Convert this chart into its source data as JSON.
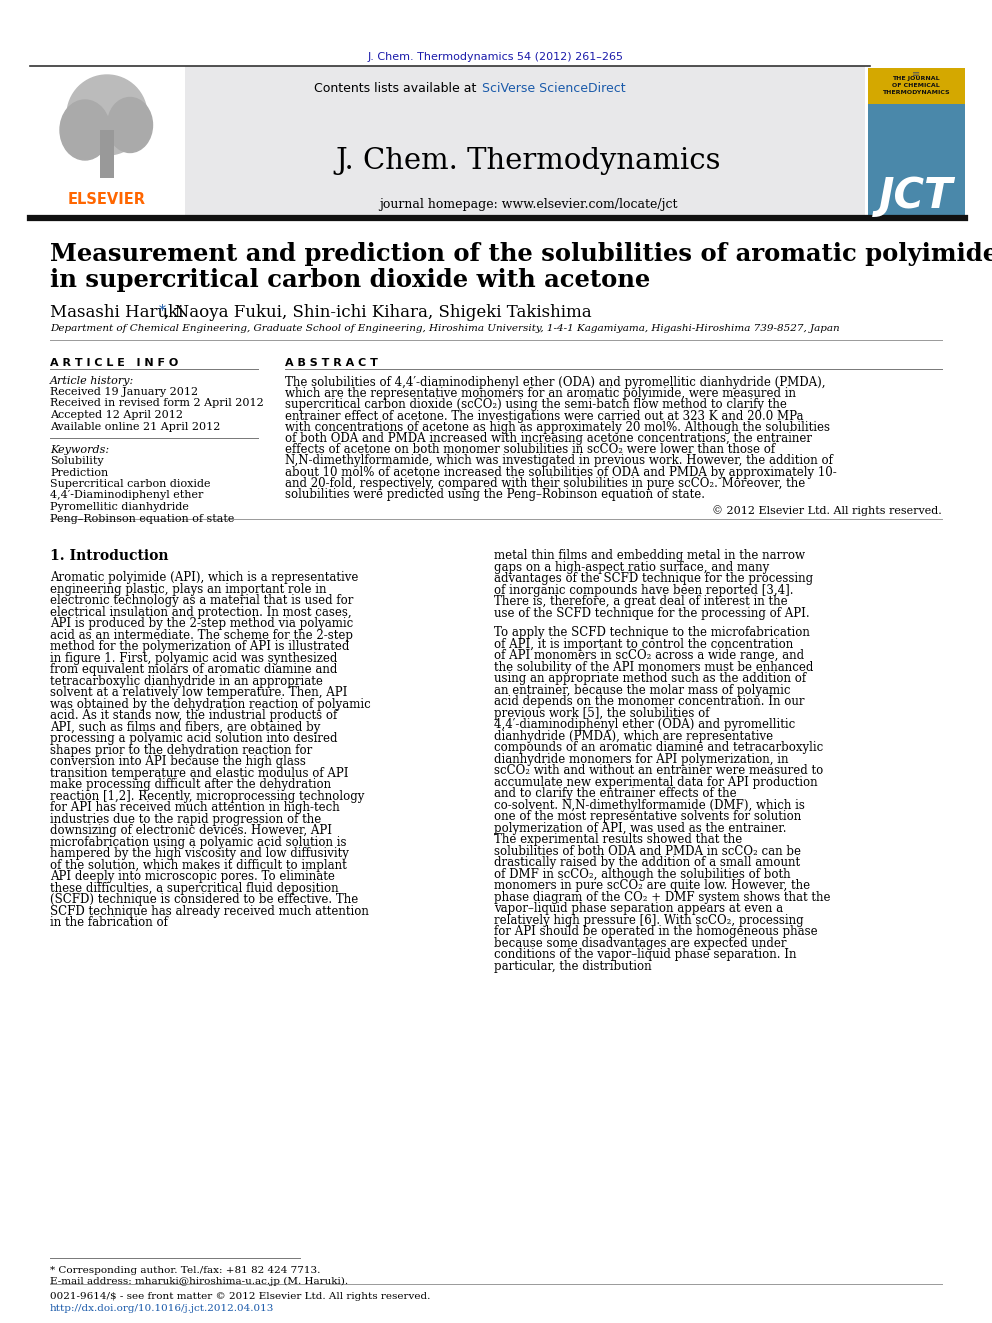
{
  "journal_ref": "J. Chem. Thermodynamics 54 (2012) 261–265",
  "journal_ref_color": "#1A1AAA",
  "header_bg": "#E8E8EA",
  "journal_name": "J. Chem. Thermodynamics",
  "contents_text": "Contents lists available at ",
  "sciverse_text": "SciVerse ScienceDirect",
  "sciverse_color": "#1A5AAA",
  "homepage_text": "journal homepage: www.elsevier.com/locate/jct",
  "elsevier_color": "#FF6600",
  "paper_title_line1": "Measurement and prediction of the solubilities of aromatic polyimide monomers",
  "paper_title_line2": "in supercritical carbon dioxide with acetone",
  "authors_plain": ", Naoya Fukui, Shin-ichi Kihara, Shigeki Takishima",
  "affiliation": "Department of Chemical Engineering, Graduate School of Engineering, Hiroshima University, 1-4-1 Kagamiyama, Higashi-Hiroshima 739-8527, Japan",
  "article_info_label": "A R T I C L E   I N F O",
  "abstract_label": "A B S T R A C T",
  "article_history_label": "Article history:",
  "article_history_lines": [
    "Received 19 January 2012",
    "Received in revised form 2 April 2012",
    "Accepted 12 April 2012",
    "Available online 21 April 2012"
  ],
  "keywords_label": "Keywords:",
  "keywords_lines": [
    "Solubility",
    "Prediction",
    "Supercritical carbon dioxide",
    "4,4′-Diaminodiphenyl ether",
    "Pyromellitic dianhydride",
    "Peng–Robinson equation of state"
  ],
  "abstract_text": "The solubilities of 4,4′-diaminodiphenyl ether (ODA) and pyromellitic dianhydride (PMDA), which are the representative monomers for an aromatic polyimide, were measured in supercritical carbon dioxide (scCO₂) using the semi-batch flow method to clarify the entrainer effect of acetone. The investigations were carried out at 323 K and 20.0 MPa with concentrations of acetone as high as approximately 20 mol%. Although the solubilities of both ODA and PMDA increased with increasing acetone concentrations, the entrainer effects of acetone on both monomer solubilities in scCO₂ were lower than those of N,N-dimethylformamide, which was investigated in previous work. However, the addition of about 10 mol% of acetone increased the solubilities of ODA and PMDA by approximately 10- and 20-fold, respectively, compared with their solubilities in pure scCO₂. Moreover, the solubilities were predicted using the Peng–Robinson equation of state.",
  "copyright_text": "© 2012 Elsevier Ltd. All rights reserved.",
  "intro_heading": "1. Introduction",
  "intro_col1_indent": "   Aromatic polyimide (API), which is a representative engineering plastic, plays an important role in electronic technology as a material that is used for electrical insulation and protection. In most cases, API is produced by the 2-step method via polyamic acid as an intermediate. The scheme for the 2-step method for the polymerization of API is illustrated in figure 1. First, polyamic acid was synthesized from equivalent molars of aromatic diamine and tetracarboxylic dianhydride in an appropriate solvent at a relatively low temperature. Then, API was obtained by the dehydration reaction of polyamic acid. As it stands now, the industrial products of API, such as films and fibers, are obtained by processing a polyamic acid solution into desired shapes prior to the dehydration reaction for conversion into API because the high glass transition temperature and elastic modulus of API make processing difficult after the dehydration reaction [1,2]. Recently, microprocessing technology for API has received much attention in high-tech industries due to the rapid progression of the downsizing of electronic devices. However, API microfabrication using a polyamic acid solution is hampered by the high viscosity and low diffusivity of the solution, which makes it difficult to implant API deeply into microscopic pores. To eliminate these difficulties, a supercritical fluid deposition (SCFD) technique is considered to be effective. The SCFD technique has already received much attention in the fabrication of",
  "intro_col2_para1": "metal thin films and embedding metal in the narrow gaps on a high-aspect ratio surface, and many advantages of the SCFD technique for the processing of inorganic compounds have been reported [3,4]. There is, therefore, a great deal of interest in the use of the SCFD technique for the processing of API.",
  "intro_col2_para2": "   To apply the SCFD technique to the microfabrication of API, it is important to control the concentration of API monomers in scCO₂ across a wide range, and the solubility of the API monomers must be enhanced using an appropriate method such as the addition of an entrainer, because the molar mass of polyamic acid depends on the monomer concentration. In our previous work [5], the solubilities of 4,4′-diaminodiphenyl ether (ODA) and pyromellitic dianhydride (PMDA), which are representative compounds of an aromatic diamine and tetracarboxylic dianhydride monomers for API polymerization, in scCO₂ with and without an entrainer were measured to accumulate new experimental data for API production and to clarify the entrainer effects of the co-solvent. N,N-dimethylformamide (DMF), which is one of the most representative solvents for solution polymerization of API, was used as the entrainer. The experimental results showed that the solubilities of both ODA and PMDA in scCO₂ can be drastically raised by the addition of a small amount of DMF in scCO₂, although the solubilities of both monomers in pure scCO₂ are quite low. However, the phase diagram of the CO₂ + DMF system shows that the vapor–liquid phase separation appears at even a relatively high pressure [6]. With scCO₂, processing for API should be operated in the homogeneous phase because some disadvantages are expected under conditions of the vapor–liquid phase separation. In particular, the distribution",
  "footnote_star": "* Corresponding author. Tel./fax: +81 82 424 7713.",
  "footnote_email": "E-mail address: mharuki@hiroshima-u.ac.jp (M. Haruki).",
  "issn_line": "0021-9614/$ - see front matter © 2012 Elsevier Ltd. All rights reserved.",
  "doi_line": "http://dx.doi.org/10.1016/j.jct.2012.04.013",
  "doi_color": "#1A5AAA",
  "background_color": "#FFFFFF",
  "text_color": "#000000"
}
